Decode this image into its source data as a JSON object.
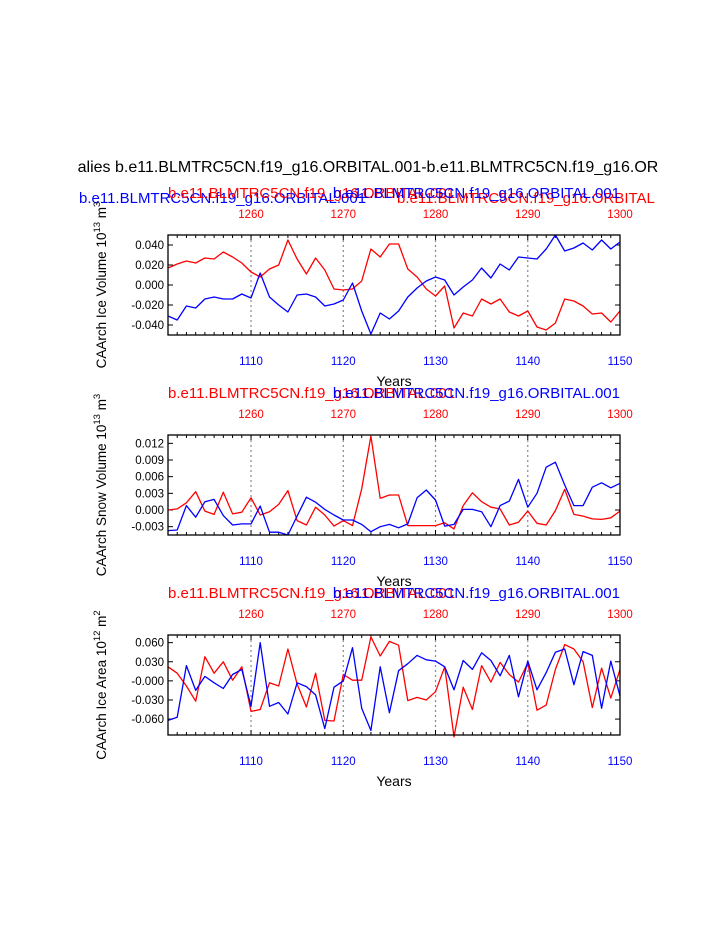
{
  "figure": {
    "title": "alies b.e11.BLMTRC5CN.f19_g16.ORBITAL.001-b.e11.BLMTRC5CN.f19_g16.OR",
    "top_blue_caption": "b.e11.BLMTRC5CN.f19_g16.ORBITAL.001",
    "top_red_caption": "b.e11.BLMTRC5CN.f19_g16.ORBITAL"
  },
  "colors": {
    "red": "#ff0000",
    "blue": "#0000ff",
    "grid": "#888888",
    "axis": "#000000"
  },
  "chart_data": [
    {
      "type": "line",
      "name": "ice-volume",
      "left_title": "b.e11.BLMTRC5CN.f19_g16.ORBITAL.001",
      "right_title": "b.e11.BLMTRC5CN.f19_g16.ORBITAL.001",
      "ylabel": "CAArch Ice Volume 10^13 m^3",
      "ylabel_main": "CAArch Ice Volume 10",
      "ylabel_exp": "13",
      "ylabel_unit": " m",
      "ylabel_unit_exp": "3",
      "xlabel": "Years",
      "xlim": [
        1101,
        1150
      ],
      "ylim": [
        -0.05,
        0.05
      ],
      "yticks": [
        0.04,
        0.02,
        0.0,
        -0.02,
        -0.04
      ],
      "ytick_labels": [
        "0.040",
        "0.020",
        "0.000",
        "-0.020",
        "-0.040"
      ],
      "xticks_bottom": [
        "1110",
        "1120",
        "1130",
        "1140",
        "1150"
      ],
      "xticks_top": [
        "1260",
        "1270",
        "1280",
        "1290",
        "1300"
      ],
      "series": [
        {
          "name": "red",
          "color": "red",
          "values": [
            0.017,
            0.021,
            0.024,
            0.022,
            0.027,
            0.026,
            0.033,
            0.028,
            0.022,
            0.013,
            0.008,
            0.016,
            0.02,
            0.045,
            0.026,
            0.011,
            0.027,
            0.015,
            -0.004,
            -0.005,
            -0.004,
            0.004,
            0.036,
            0.028,
            0.041,
            0.041,
            0.016,
            0.008,
            -0.004,
            -0.011,
            -0.001,
            -0.043,
            -0.028,
            -0.031,
            -0.014,
            -0.019,
            -0.014,
            -0.027,
            -0.031,
            -0.026,
            -0.042,
            -0.045,
            -0.038,
            -0.014,
            -0.016,
            -0.021,
            -0.029,
            -0.028,
            -0.037,
            -0.026
          ]
        },
        {
          "name": "blue",
          "color": "blue",
          "values": [
            -0.031,
            -0.035,
            -0.021,
            -0.023,
            -0.014,
            -0.012,
            -0.014,
            -0.014,
            -0.009,
            -0.013,
            0.012,
            -0.012,
            -0.02,
            -0.027,
            -0.01,
            -0.009,
            -0.012,
            -0.021,
            -0.019,
            -0.015,
            0.002,
            -0.026,
            -0.049,
            -0.028,
            -0.034,
            -0.026,
            -0.012,
            -0.003,
            0.004,
            0.008,
            0.005,
            -0.01,
            -0.002,
            0.005,
            0.017,
            0.007,
            0.021,
            0.015,
            0.028,
            0.027,
            0.026,
            0.036,
            0.05,
            0.034,
            0.037,
            0.042,
            0.035,
            0.045,
            0.036,
            0.043
          ]
        }
      ]
    },
    {
      "type": "line",
      "name": "snow-volume",
      "left_title": "b.e11.BLMTRC5CN.f19_g16.ORBITAL.001",
      "right_title": "b.e11.BLMTRC5CN.f19_g16.ORBITAL.001",
      "ylabel": "CAArch Snow Volume 10^13 m^3",
      "ylabel_main": "CAArch Snow Volume 10",
      "ylabel_exp": "13",
      "ylabel_unit": " m",
      "ylabel_unit_exp": "3",
      "xlabel": "Years",
      "xlim": [
        1101,
        1150
      ],
      "ylim": [
        -0.0045,
        0.0135
      ],
      "yticks": [
        0.012,
        0.009,
        0.006,
        0.003,
        0.0,
        -0.003
      ],
      "ytick_labels": [
        "0.012",
        "0.009",
        "0.006",
        "0.003",
        "0.000",
        "-0.003"
      ],
      "xticks_bottom": [
        "1110",
        "1120",
        "1130",
        "1140",
        "1150"
      ],
      "xticks_top": [
        "1260",
        "1270",
        "1280",
        "1290",
        "1300"
      ],
      "series": [
        {
          "name": "red",
          "color": "red",
          "values": [
            0.0,
            0.0002,
            0.0013,
            0.0033,
            -0.0002,
            -0.0008,
            0.0032,
            -0.0007,
            -0.0004,
            0.0022,
            -0.0009,
            -0.0003,
            0.001,
            0.0035,
            -0.0019,
            -0.0027,
            0.0005,
            -0.0009,
            -0.0029,
            -0.0019,
            -0.0028,
            0.0038,
            0.0133,
            0.0021,
            0.0027,
            0.0027,
            -0.0028,
            -0.0028,
            -0.0028,
            -0.0028,
            -0.0023,
            -0.0034,
            0.0008,
            0.0031,
            0.0015,
            0.0005,
            0.0002,
            -0.0027,
            -0.0022,
            -0.0002,
            -0.0024,
            -0.0027,
            -0.0001,
            0.0037,
            -0.0008,
            -0.0011,
            -0.0016,
            -0.0017,
            -0.0014,
            -0.0002
          ]
        },
        {
          "name": "blue",
          "color": "blue",
          "values": [
            -0.0037,
            -0.0036,
            0.0008,
            -0.0013,
            0.0015,
            0.0019,
            -0.001,
            -0.0027,
            -0.0025,
            -0.0025,
            0.0007,
            -0.004,
            -0.004,
            -0.0045,
            -0.0011,
            0.0023,
            0.0014,
            0.0001,
            -0.0009,
            -0.0018,
            -0.0018,
            -0.0026,
            -0.0039,
            -0.003,
            -0.0026,
            -0.0032,
            -0.0025,
            0.0022,
            0.0036,
            0.0018,
            -0.0029,
            -0.0026,
            0.0001,
            0.0001,
            -0.0003,
            -0.003,
            0.0008,
            0.0016,
            0.0055,
            0.0005,
            0.003,
            0.0077,
            0.0086,
            0.0045,
            0.0008,
            0.0008,
            0.0041,
            0.0049,
            0.004,
            0.0048
          ]
        }
      ]
    },
    {
      "type": "line",
      "name": "ice-area",
      "left_title": "b.e11.BLMTRC5CN.f19_g16.ORBITAL.001",
      "right_title": "b.e11.BLMTRC5CN.f19_g16.ORBITAL.001",
      "ylabel": "CAArch Ice Area 10^12 m^2",
      "ylabel_main": "CAArch Ice Area 10",
      "ylabel_exp": "12",
      "ylabel_unit": " m",
      "ylabel_unit_exp": "2",
      "xlabel": "Years",
      "xlim": [
        1101,
        1150
      ],
      "ylim": [
        -0.085,
        0.072
      ],
      "yticks": [
        0.06,
        0.03,
        0.0,
        -0.03,
        -0.06
      ],
      "ytick_labels": [
        "0.060",
        "0.030",
        "-0.000",
        "-0.030",
        "-0.060"
      ],
      "xticks_bottom": [
        "1110",
        "1120",
        "1130",
        "1140",
        "1150"
      ],
      "xticks_top": [
        "1260",
        "1270",
        "1280",
        "1290",
        "1300"
      ],
      "series": [
        {
          "name": "red",
          "color": "red",
          "values": [
            0.022,
            0.012,
            -0.008,
            -0.032,
            0.038,
            0.012,
            0.03,
            0.001,
            0.022,
            -0.048,
            -0.045,
            -0.003,
            -0.008,
            0.05,
            -0.005,
            -0.041,
            0.012,
            -0.062,
            -0.063,
            0.01,
            0.001,
            0.001,
            0.069,
            0.039,
            0.062,
            0.056,
            -0.031,
            -0.026,
            -0.03,
            -0.017,
            0.022,
            -0.088,
            -0.01,
            -0.045,
            0.024,
            -0.002,
            0.029,
            0.01,
            -0.002,
            0.028,
            -0.046,
            -0.038,
            0.018,
            0.057,
            0.05,
            0.03,
            -0.042,
            0.02,
            -0.027,
            0.018
          ]
        },
        {
          "name": "blue",
          "color": "blue",
          "values": [
            -0.062,
            -0.057,
            0.024,
            -0.015,
            0.007,
            -0.003,
            -0.012,
            0.01,
            0.018,
            -0.04,
            0.06,
            -0.04,
            -0.034,
            -0.052,
            -0.003,
            -0.009,
            -0.022,
            -0.075,
            -0.01,
            0.0,
            0.052,
            -0.043,
            -0.078,
            0.022,
            -0.05,
            0.016,
            0.027,
            0.04,
            0.033,
            0.031,
            0.022,
            -0.014,
            0.032,
            0.018,
            0.044,
            0.032,
            0.008,
            0.04,
            -0.025,
            0.031,
            -0.014,
            0.013,
            0.045,
            0.05,
            -0.006,
            0.046,
            0.04,
            -0.043,
            0.031,
            -0.024
          ]
        }
      ]
    }
  ]
}
